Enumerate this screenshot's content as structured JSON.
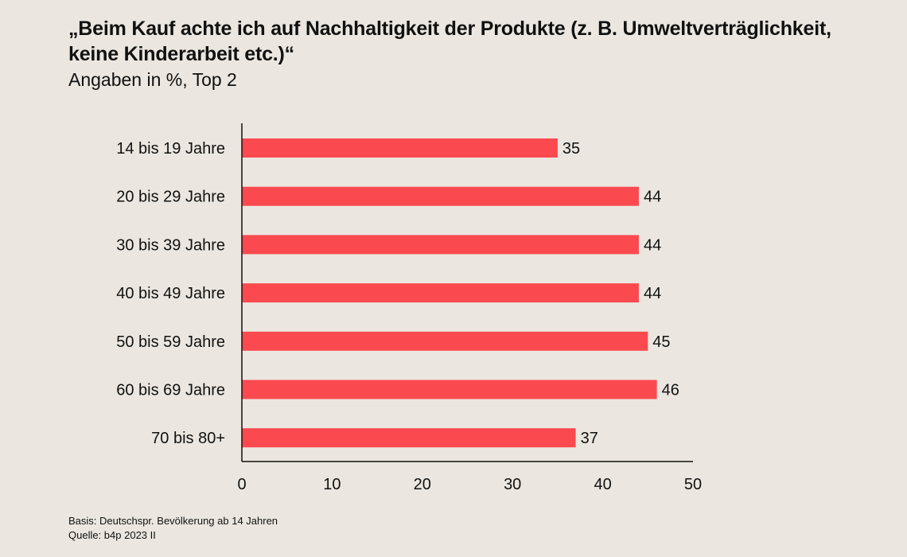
{
  "chart_data": {
    "type": "bar",
    "orientation": "horizontal",
    "title": "„Beim Kauf achte ich auf Nachhaltigkeit der Produkte (z. B. Umweltverträglichkeit, keine Kinderarbeit etc.)“",
    "subtitle": "Angaben in %, Top 2",
    "categories": [
      "14 bis 19 Jahre",
      "20 bis 29 Jahre",
      "30 bis 39 Jahre",
      "40 bis 49 Jahre",
      "50 bis 59 Jahre",
      "60 bis 69 Jahre",
      "70 bis 80+"
    ],
    "values": [
      35,
      44,
      44,
      44,
      45,
      46,
      37
    ],
    "xlim": [
      0,
      50
    ],
    "xticks": [
      0,
      10,
      20,
      30,
      40,
      50
    ],
    "grid": false,
    "bar_color": "#fa4a4f"
  },
  "footer": {
    "basis": "Basis: Deutschspr. Bevölkerung ab 14 Jahren",
    "source": "Quelle: b4p 2023 II"
  }
}
